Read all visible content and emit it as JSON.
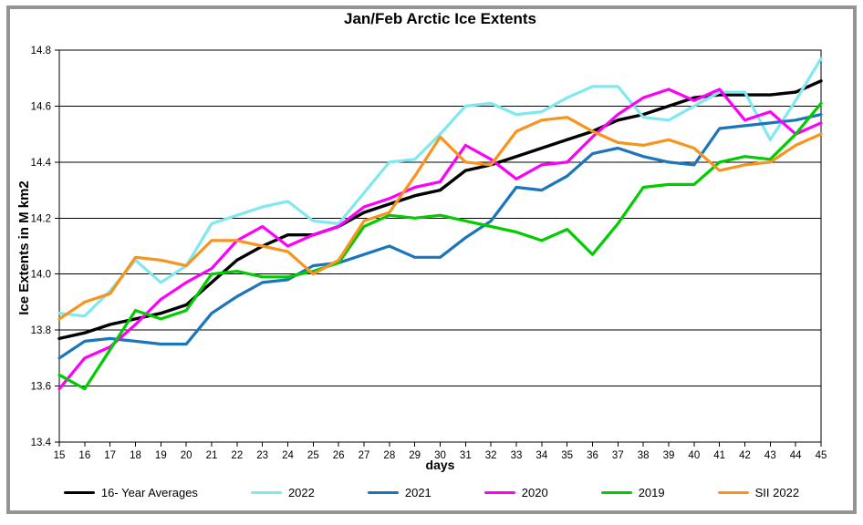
{
  "window": {
    "background_color": "#ffffff",
    "frame_color": "#949494"
  },
  "chart_data": {
    "type": "line",
    "title": "Jan/Feb Arctic Ice Extents",
    "xlabel": "days",
    "ylabel": "Ice Extents in M km2",
    "xlim": [
      15,
      45
    ],
    "ylim": [
      13.4,
      14.8
    ],
    "grid": "horizontal",
    "legend_position": "bottom",
    "x": [
      15,
      16,
      17,
      18,
      19,
      20,
      21,
      22,
      23,
      24,
      25,
      26,
      27,
      28,
      29,
      30,
      31,
      32,
      33,
      34,
      35,
      36,
      37,
      38,
      39,
      40,
      41,
      42,
      43,
      44,
      45
    ],
    "y_ticks": [
      13.4,
      13.6,
      13.8,
      14.0,
      14.2,
      14.4,
      14.6,
      14.8
    ],
    "series": [
      {
        "name": "16- Year Averages",
        "color": "#000000",
        "width": 3.4,
        "values": [
          13.77,
          13.79,
          13.82,
          13.84,
          13.86,
          13.89,
          13.97,
          14.05,
          14.1,
          14.14,
          14.14,
          14.17,
          14.22,
          14.25,
          14.28,
          14.3,
          14.37,
          14.39,
          14.42,
          14.45,
          14.48,
          14.51,
          14.55,
          14.57,
          14.6,
          14.63,
          14.64,
          14.64,
          14.64,
          14.65,
          14.69
        ]
      },
      {
        "name": "2022",
        "color": "#7FE8F0",
        "width": 3.2,
        "values": [
          13.86,
          13.85,
          13.94,
          14.05,
          13.97,
          14.03,
          14.18,
          14.21,
          14.24,
          14.26,
          14.19,
          14.18,
          14.29,
          14.4,
          14.41,
          14.5,
          14.6,
          14.61,
          14.57,
          14.58,
          14.63,
          14.67,
          14.67,
          14.56,
          14.55,
          14.6,
          14.65,
          14.65,
          14.48,
          14.62,
          14.77
        ]
      },
      {
        "name": "2021",
        "color": "#1B75BC",
        "width": 3.2,
        "values": [
          13.7,
          13.76,
          13.77,
          13.76,
          13.75,
          13.75,
          13.86,
          13.92,
          13.97,
          13.98,
          14.03,
          14.04,
          14.07,
          14.1,
          14.06,
          14.06,
          14.13,
          14.19,
          14.31,
          14.3,
          14.35,
          14.43,
          14.45,
          14.42,
          14.4,
          14.39,
          14.52,
          14.53,
          14.54,
          14.55,
          14.57
        ]
      },
      {
        "name": "2020",
        "color": "#FB00FB",
        "width": 3.2,
        "values": [
          13.59,
          13.7,
          13.74,
          13.82,
          13.91,
          13.97,
          14.02,
          14.12,
          14.17,
          14.1,
          14.14,
          14.17,
          14.24,
          14.27,
          14.31,
          14.33,
          14.46,
          14.41,
          14.34,
          14.39,
          14.4,
          14.49,
          14.57,
          14.63,
          14.66,
          14.62,
          14.66,
          14.55,
          14.58,
          14.5,
          14.54
        ]
      },
      {
        "name": "2019",
        "color": "#00CC00",
        "width": 3.2,
        "values": [
          13.64,
          13.59,
          13.73,
          13.87,
          13.84,
          13.87,
          14.0,
          14.01,
          13.99,
          13.99,
          14.01,
          14.04,
          14.17,
          14.21,
          14.2,
          14.21,
          14.19,
          14.17,
          14.15,
          14.12,
          14.16,
          14.07,
          14.18,
          14.31,
          14.32,
          14.32,
          14.4,
          14.42,
          14.41,
          14.5,
          14.61
        ]
      },
      {
        "name": "SII 2022",
        "color": "#F7941E",
        "width": 3.2,
        "values": [
          13.84,
          13.9,
          13.93,
          14.06,
          14.05,
          14.03,
          14.12,
          14.12,
          14.1,
          14.08,
          14.0,
          14.05,
          14.19,
          14.22,
          14.35,
          14.49,
          14.4,
          14.39,
          14.51,
          14.55,
          14.56,
          14.51,
          14.47,
          14.46,
          14.48,
          14.45,
          14.37,
          14.39,
          14.4,
          14.46,
          14.5
        ]
      }
    ]
  }
}
